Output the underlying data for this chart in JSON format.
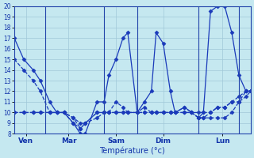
{
  "xlabel": "Température (°c)",
  "background_color": "#c5e8f0",
  "line_color": "#1a3aba",
  "grid_color": "#a0c8d8",
  "ylim": [
    8,
    20
  ],
  "yticks": [
    8,
    9,
    10,
    11,
    12,
    13,
    14,
    15,
    16,
    17,
    18,
    19,
    20
  ],
  "xlim": [
    0,
    100
  ],
  "day_lines": [
    13,
    38,
    52,
    78,
    95
  ],
  "xtick_positions": [
    5,
    23,
    43,
    63,
    88
  ],
  "xtick_labels": [
    "Ven",
    "Mar",
    "Sam",
    "Dim",
    "Lun"
  ],
  "lines": [
    {
      "x": [
        0,
        4,
        8,
        11,
        15,
        18,
        21,
        25,
        28,
        30,
        35,
        38,
        40,
        43,
        46,
        48,
        52,
        55,
        58,
        60,
        63,
        66,
        68,
        72,
        75,
        78,
        80,
        83,
        86,
        89,
        92,
        95,
        98,
        100
      ],
      "y": [
        17,
        15,
        14,
        13,
        11,
        10,
        10,
        9,
        8,
        8,
        11,
        11,
        13.5,
        15,
        17,
        17.5,
        10,
        11,
        12,
        17.5,
        16.5,
        12,
        10,
        10.5,
        10,
        10,
        10,
        19.5,
        20,
        20,
        17.5,
        13.5,
        12,
        12
      ],
      "dashed": false
    },
    {
      "x": [
        0,
        4,
        8,
        11,
        15,
        18,
        21,
        25,
        28,
        30,
        35,
        38,
        40,
        43,
        46,
        48,
        52,
        55,
        58,
        60,
        63,
        66,
        68,
        72,
        75,
        78,
        80,
        83,
        86,
        89,
        92,
        95,
        98,
        100
      ],
      "y": [
        15,
        14,
        13,
        12,
        10,
        10,
        10,
        9,
        8.5,
        9,
        10,
        10,
        10,
        11,
        10.5,
        10,
        10,
        10.5,
        10,
        10,
        10,
        10,
        10,
        10.5,
        10,
        9.5,
        10,
        10,
        10.5,
        10.5,
        11,
        11,
        12,
        12
      ],
      "dashed": true
    },
    {
      "x": [
        0,
        4,
        8,
        11,
        15,
        18,
        21,
        25,
        28,
        30,
        35,
        38,
        40,
        43,
        46,
        48,
        52,
        55,
        58,
        60,
        63,
        66,
        68,
        72,
        75,
        78,
        80,
        83,
        86,
        89,
        92,
        95,
        98,
        100
      ],
      "y": [
        10,
        10,
        10,
        10,
        10,
        10,
        10,
        9.5,
        9,
        9,
        10,
        10,
        10,
        10,
        10,
        10,
        10,
        10,
        10,
        10,
        10,
        10,
        10,
        10,
        10,
        9.5,
        9.5,
        10,
        10.5,
        10.5,
        11,
        11.5,
        12,
        12
      ],
      "dashed": true
    },
    {
      "x": [
        0,
        4,
        8,
        11,
        15,
        18,
        21,
        25,
        28,
        30,
        35,
        38,
        40,
        43,
        46,
        48,
        52,
        55,
        58,
        60,
        63,
        66,
        68,
        72,
        75,
        78,
        80,
        83,
        86,
        89,
        92,
        95,
        98,
        100
      ],
      "y": [
        10,
        10,
        10,
        10,
        10,
        10,
        10,
        9.5,
        8.5,
        9,
        9.5,
        10,
        10,
        10,
        10,
        10,
        10,
        10,
        10,
        10,
        10,
        10,
        10,
        10,
        10,
        9.5,
        9.5,
        9.5,
        9.5,
        9.5,
        10,
        11,
        11.5,
        12
      ],
      "dashed": true
    }
  ]
}
